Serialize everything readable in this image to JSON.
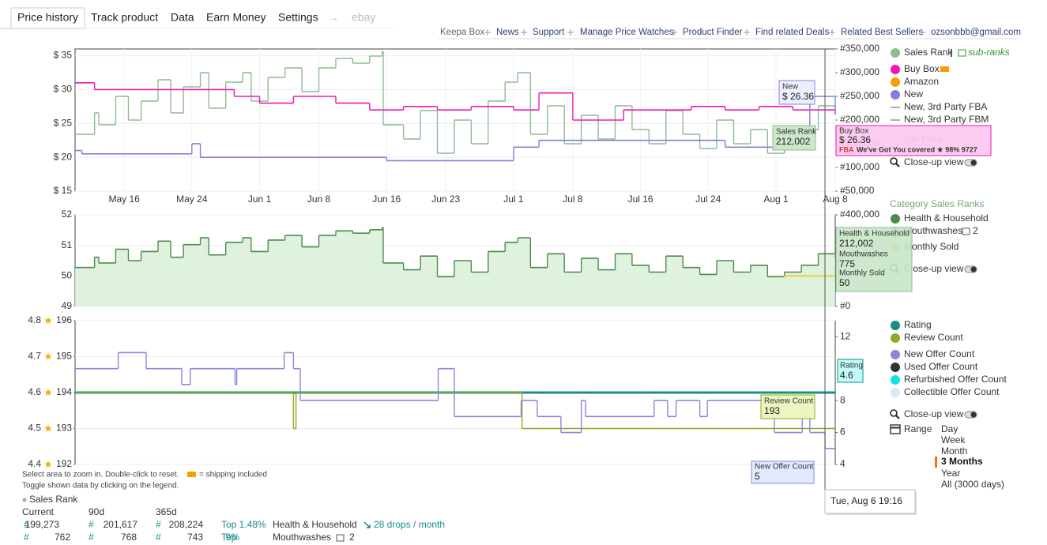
{
  "tabs": [
    "Price history",
    "Track product",
    "Data",
    "Earn Money",
    "Settings",
    "→",
    "ebay"
  ],
  "links": [
    "Keepa Box",
    "News",
    "Support",
    "Manage Price Watches",
    "Product Finder",
    "Find related Deals",
    "Related Best Sellers",
    "ozsonbbb@gmail.com"
  ],
  "chart_data": [
    {
      "type": "line",
      "step": true,
      "grid": true,
      "xlim": [
        131.2,
        221
      ],
      "xticks": [
        {
          "value": 137,
          "label": "May 16"
        },
        {
          "value": 145,
          "label": "May 24"
        },
        {
          "value": 153,
          "label": "Jun 1"
        },
        {
          "value": 160,
          "label": "Jun 8"
        },
        {
          "value": 168,
          "label": "Jun 16"
        },
        {
          "value": 175,
          "label": "Jun 23"
        },
        {
          "value": 183,
          "label": "Jul 1"
        },
        {
          "value": 190,
          "label": "Jul 8"
        },
        {
          "value": 198,
          "label": "Jul 16"
        },
        {
          "value": 206,
          "label": "Jul 24"
        },
        {
          "value": 214,
          "label": "Aug 1"
        },
        {
          "value": 221,
          "label": "Aug 8"
        }
      ],
      "ylim": [
        15,
        36
      ],
      "yticks": [
        {
          "value": 15,
          "label": "$ 15"
        },
        {
          "value": 20,
          "label": "$ 20"
        },
        {
          "value": 25,
          "label": "$ 25"
        },
        {
          "value": 30,
          "label": "$ 30"
        },
        {
          "value": 35,
          "label": "$ 35"
        }
      ],
      "y2lim": [
        50000,
        350000
      ],
      "y2ticks": [
        {
          "value": 50000,
          "label": "#50,000"
        },
        {
          "value": 100000,
          "label": "#100,000"
        },
        {
          "value": 150000,
          "label": "#150,000"
        },
        {
          "value": 200000,
          "label": "#200,000"
        },
        {
          "value": 250000,
          "label": "#250,000"
        },
        {
          "value": 300000,
          "label": "#300,000"
        },
        {
          "value": 350000,
          "label": "#350,000"
        }
      ],
      "series": [
        {
          "name": "Sales Rank",
          "color": "#8fbc8f",
          "axis": "y2",
          "x": [
            131.2,
            133.5,
            134,
            136,
            137.5,
            139,
            141,
            142.5,
            144,
            146,
            147,
            149,
            151,
            152,
            154,
            156,
            158,
            160,
            162,
            164,
            166,
            167.5,
            167.6,
            170,
            172,
            174,
            176,
            178,
            180,
            182,
            183.5,
            185,
            187,
            189,
            191,
            193,
            195,
            197,
            199,
            201,
            203,
            205,
            207,
            209,
            211,
            213,
            215,
            217,
            219,
            221
          ],
          "values": [
            170000,
            215000,
            190000,
            250000,
            200000,
            240000,
            285000,
            215000,
            270000,
            300000,
            225000,
            280000,
            300000,
            240000,
            290000,
            310000,
            260000,
            310000,
            330000,
            320000,
            335000,
            345000,
            190000,
            160000,
            220000,
            130000,
            200000,
            150000,
            240000,
            280000,
            300000,
            170000,
            230000,
            150000,
            210000,
            160000,
            230000,
            180000,
            150000,
            220000,
            170000,
            140000,
            200000,
            150000,
            180000,
            130000,
            150000,
            180000,
            230000,
            212002
          ]
        },
        {
          "name": "Buy Box",
          "color": "#f018b0",
          "axis": "y",
          "x": [
            131.2,
            133.5,
            137,
            141,
            146,
            150,
            153,
            157,
            162,
            166,
            170,
            174,
            178,
            183,
            186,
            190,
            193,
            196,
            200,
            204,
            208,
            212,
            216,
            221
          ],
          "values": [
            31,
            30,
            30,
            30,
            30,
            29,
            28,
            29,
            28,
            27,
            27.5,
            27,
            27.5,
            27,
            29.5,
            25.5,
            25.5,
            27,
            27,
            27.5,
            27,
            27.5,
            27,
            26.36
          ]
        },
        {
          "name": "New",
          "color": "#8080d8",
          "axis": "y",
          "x": [
            131.2,
            132,
            135,
            141,
            145,
            146,
            160,
            168,
            170,
            183,
            186,
            194,
            205,
            208,
            214,
            216,
            218,
            221
          ],
          "values": [
            21,
            20.5,
            20.5,
            20.5,
            22,
            20,
            20,
            19.5,
            19.5,
            21.5,
            22.5,
            22.5,
            22.5,
            21.5,
            22,
            24,
            29,
            26.36
          ]
        }
      ]
    },
    {
      "type": "line",
      "step": true,
      "grid": true,
      "xlim": [
        131.2,
        221
      ],
      "ylim": [
        49,
        52
      ],
      "yticks": [
        49,
        50,
        51,
        52
      ],
      "y2lim": [
        0,
        400000
      ],
      "y2ticks": [
        {
          "value": 0,
          "label": "#0"
        },
        {
          "value": 400000,
          "label": "#400,000"
        }
      ],
      "series": [
        {
          "name": "Health & Household",
          "color": "#4e8a4e",
          "area_color": "#d6efd6",
          "axis": "y2",
          "x": [
            131.2,
            133.5,
            134,
            136,
            137.5,
            139,
            141,
            142.5,
            144,
            146,
            147,
            149,
            151,
            152,
            154,
            156,
            158,
            160,
            162,
            164,
            166,
            167.5,
            167.6,
            170,
            172,
            174,
            176,
            178,
            180,
            182,
            183.5,
            185,
            187,
            189,
            191,
            193,
            195,
            197,
            199,
            201,
            203,
            205,
            207,
            209,
            211,
            213,
            215,
            217,
            219,
            221
          ],
          "values": [
            170000,
            215000,
            190000,
            250000,
            200000,
            240000,
            285000,
            215000,
            270000,
            300000,
            225000,
            280000,
            300000,
            240000,
            290000,
            310000,
            260000,
            310000,
            330000,
            320000,
            335000,
            345000,
            190000,
            160000,
            220000,
            130000,
            200000,
            150000,
            240000,
            280000,
            300000,
            170000,
            230000,
            150000,
            210000,
            160000,
            230000,
            180000,
            150000,
            220000,
            170000,
            140000,
            200000,
            150000,
            180000,
            130000,
            150000,
            180000,
            230000,
            212002
          ]
        },
        {
          "name": "Monthly Sold",
          "color": "#f0c419",
          "axis": "y",
          "x": [
            214.7,
            221
          ],
          "values": [
            50,
            50
          ]
        }
      ]
    },
    {
      "type": "line",
      "step": true,
      "grid": true,
      "xlim": [
        131.2,
        221
      ],
      "ylim": [
        4.4,
        4.8
      ],
      "yticks": [
        4.4,
        4.5,
        4.6,
        4.7,
        4.8
      ],
      "y3lim": [
        192,
        196
      ],
      "y3ticks": [
        192,
        193,
        194,
        195,
        196
      ],
      "y2lim": [
        4,
        13
      ],
      "y2ticks": [
        4,
        6,
        8,
        12
      ],
      "series": [
        {
          "name": "Rating",
          "color": "#148f80",
          "axis": "y",
          "x": [
            131.2,
            221
          ],
          "values": [
            4.6,
            4.6
          ]
        },
        {
          "name": "Review Count",
          "color": "#8fac1c",
          "axis": "y3",
          "x": [
            131.2,
            157,
            157.3,
            184,
            221
          ],
          "values": [
            194,
            193,
            194,
            193,
            193
          ]
        },
        {
          "name": "New Offer Count",
          "color": "#8888dd",
          "axis": "y2",
          "x": [
            131.2,
            136.3,
            139.6,
            143.8,
            144.8,
            150.1,
            150.3,
            155.9,
            157.0,
            157.8,
            174.1,
            176.0,
            183.9,
            185.8,
            188.6,
            191.0,
            191.5,
            199.6,
            201.2,
            202.2,
            205.0,
            205.9,
            213.8,
            217.1,
            218.0,
            219.8
          ],
          "values": [
            10,
            11,
            10,
            9,
            10,
            9,
            10,
            11,
            10,
            8,
            10,
            7,
            8,
            7,
            6,
            8,
            7,
            8,
            7,
            8,
            7,
            8,
            6,
            7,
            6,
            5
          ]
        }
      ]
    }
  ],
  "legend": {
    "sub_ranks": "sub-ranks",
    "extra": [
      {
        "name": "Amazon",
        "color": "#f5a000",
        "marker": "dot"
      },
      {
        "name": "New, 3rd Party FBA",
        "color": "#b0b0b0",
        "marker": "line"
      },
      {
        "name": "New, 3rd Party FBM",
        "color": "#b0b0b0",
        "marker": "line"
      },
      {
        "name": "List Price",
        "color": "#c8c8c8",
        "marker": "line"
      }
    ],
    "closeup": "Close-up view",
    "category_title": "Category Sales Ranks",
    "mouthwashes": {
      "name": "Mouthwashes",
      "color": "#8fbc8f",
      "count": "2"
    },
    "offer_extra": [
      {
        "name": "Used Offer Count",
        "color": "#333333"
      },
      {
        "name": "Refurbished Offer Count",
        "color": "#18e0e0"
      },
      {
        "name": "Collectible Offer Count",
        "color": "#dce6f7"
      }
    ],
    "range_label": "Range",
    "ranges": [
      "Day",
      "Week",
      "Month",
      "3 Months",
      "Year",
      "All (3000 days)"
    ],
    "range_selected": 3
  },
  "tooltips": {
    "new_value": "$ 26.36",
    "rank_value": "212,002",
    "buybox_value": "$ 26.36",
    "buybox_fba": "FBA",
    "buybox_seller": "We've Got You covered ★ 98%  9727",
    "cat_rank_value": "212,002",
    "mouthwashes_value": "775",
    "monthly_sold_value": "50",
    "rating_value": "4.6",
    "review_value": "193",
    "offer_value": "5",
    "date": "Tue, Aug 6 19:16"
  },
  "footer": {
    "hint1": "Select area to zoom in. Double-click to reset.",
    "shipping": "= shipping included",
    "hint2": "Toggle shown data by clicking on the legend.",
    "rank_title": "Sales Rank",
    "columns": [
      "Current",
      "90d",
      "365d"
    ],
    "rows": [
      [
        "#",
        "199,273",
        "#",
        "201,617",
        "#",
        "208,224",
        "Top 1.48%",
        "Health & Household",
        "28 drops / month"
      ],
      [
        "#",
        "762",
        "#",
        "768",
        "#",
        "743",
        "Top",
        "9%",
        "Mouthwashes",
        "2"
      ]
    ]
  }
}
